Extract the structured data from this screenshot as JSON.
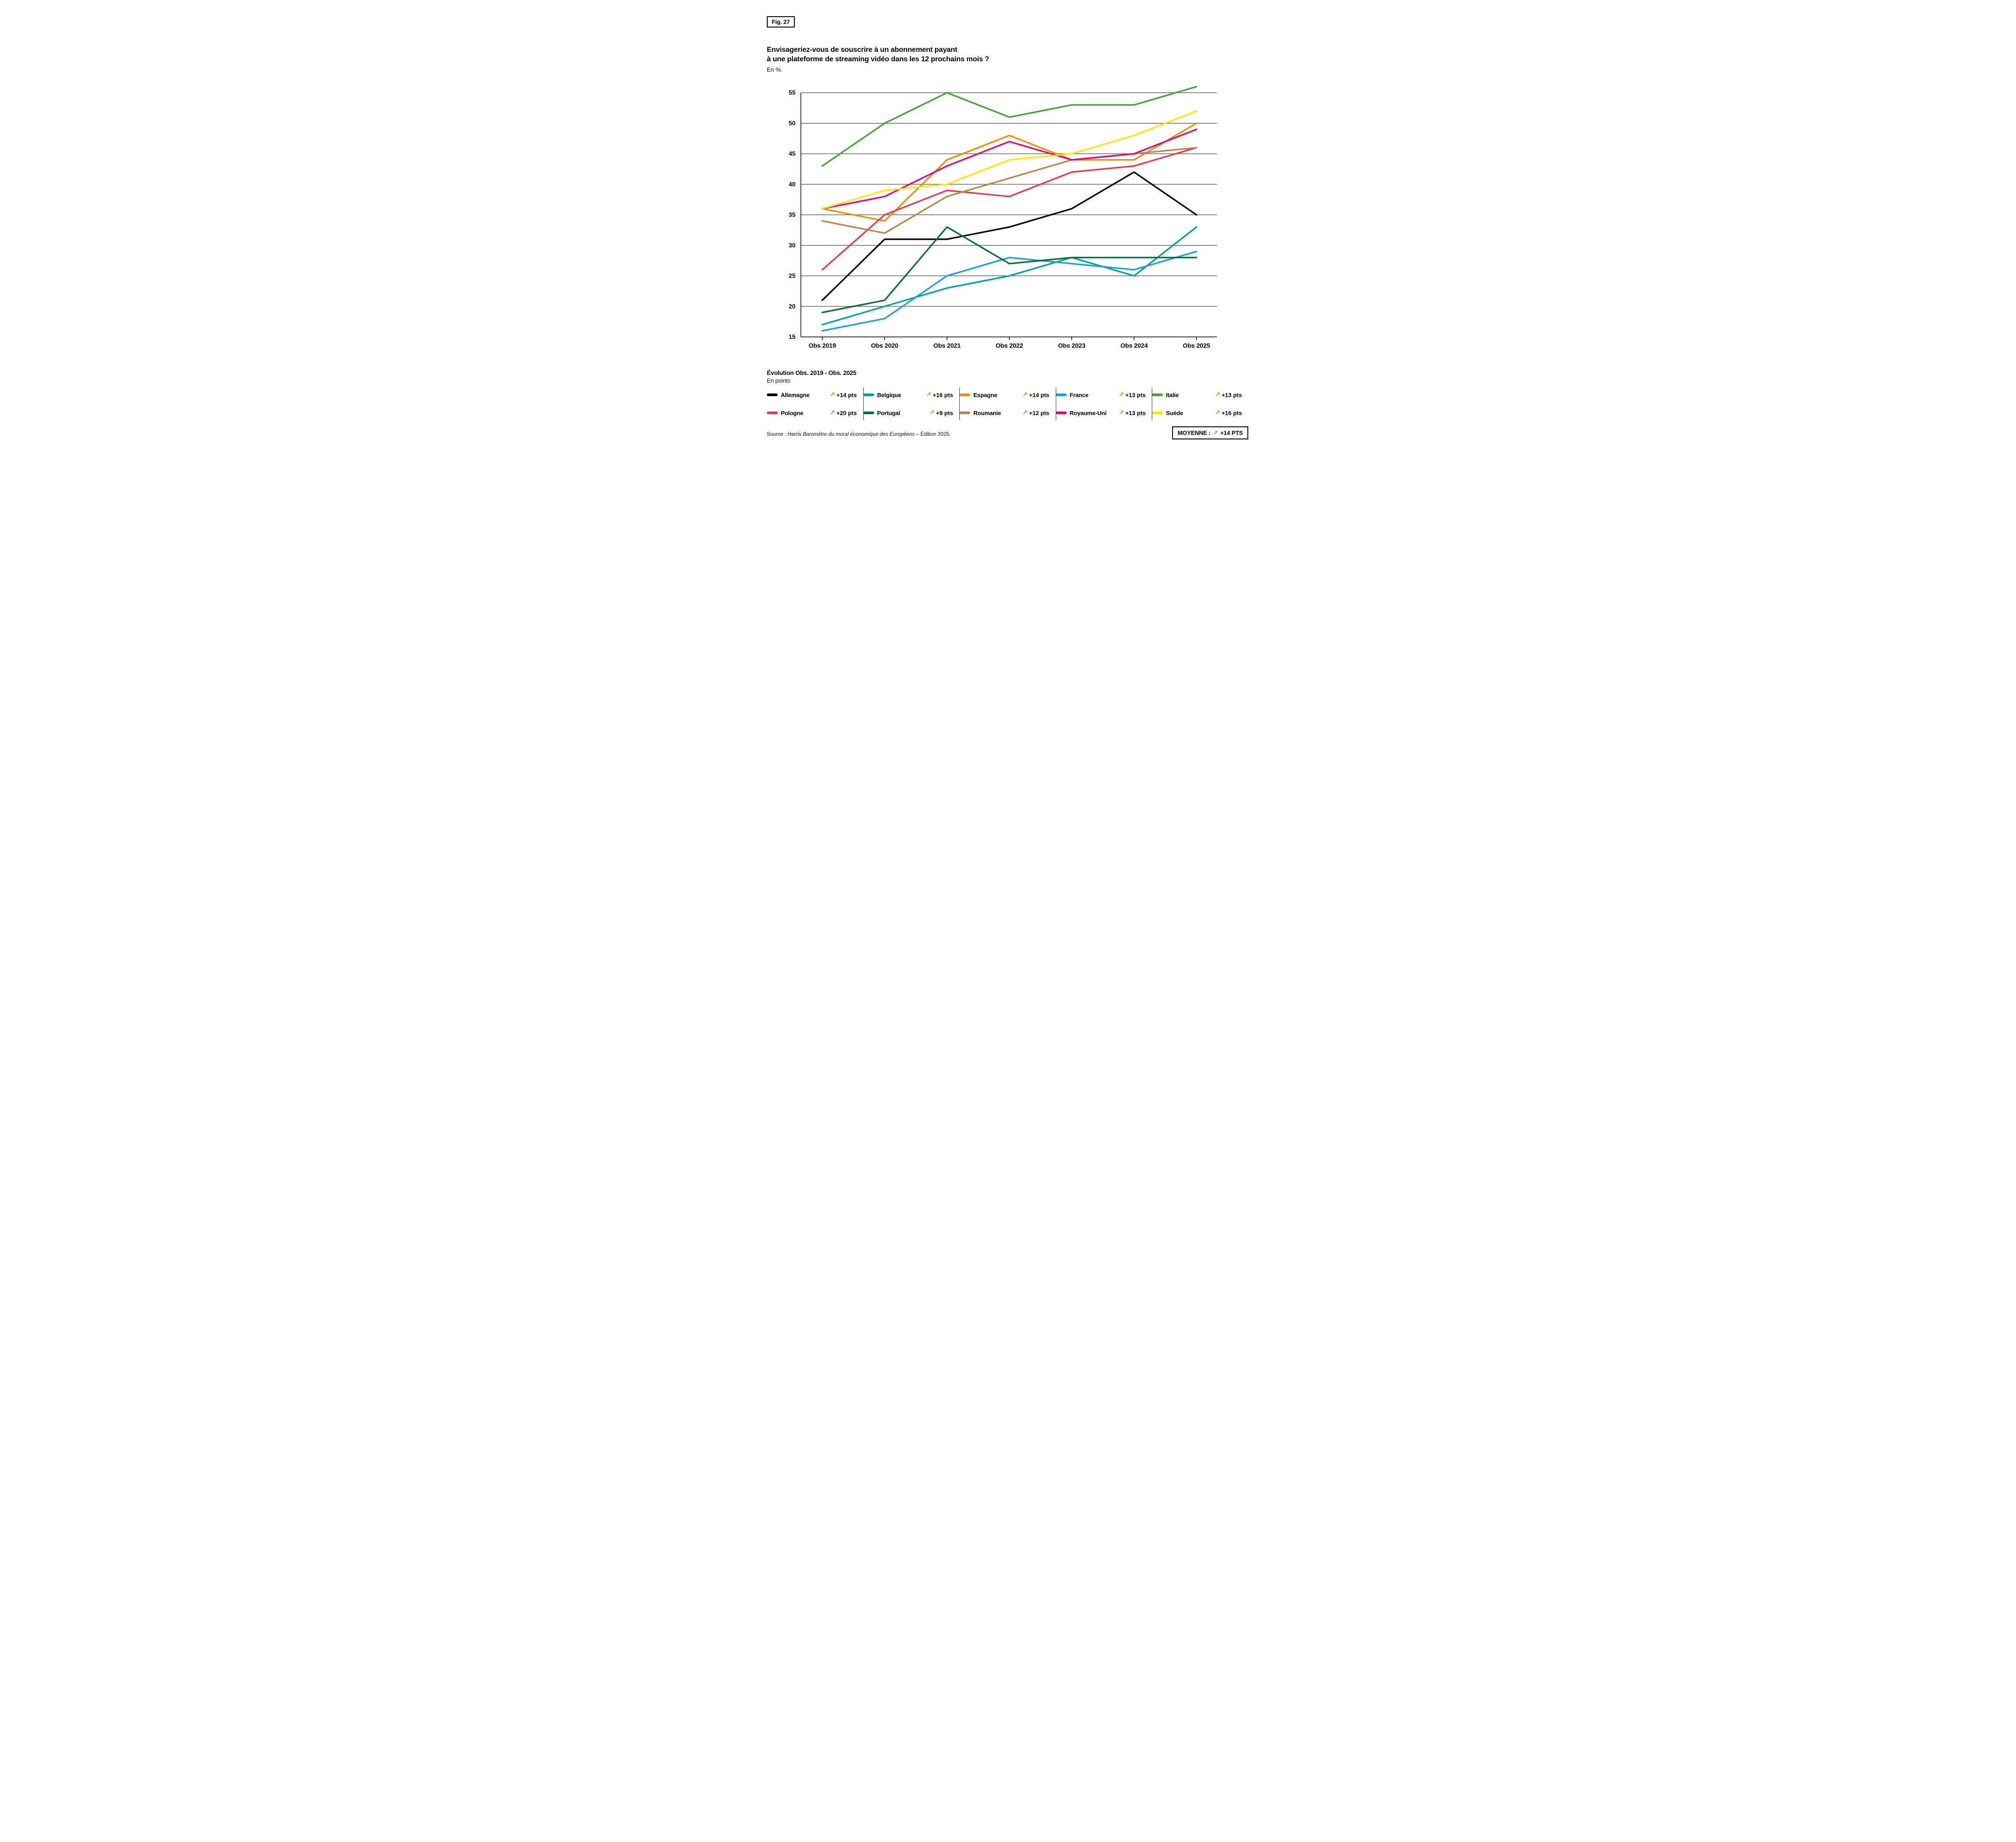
{
  "figure": {
    "badge": "Fig. 27",
    "title_line1": "Envisageriez-vous de souscrire à un abonnement payant",
    "title_line2": "à une plateforme de streaming vidéo dans les 12 prochains mois ?",
    "unit_note": "En %."
  },
  "chart_data": {
    "type": "line",
    "title": "Envisageriez-vous de souscrire à un abonnement payant à une plateforme de streaming vidéo dans les 12 prochains mois ?",
    "xlabel": "",
    "ylabel": "En %",
    "x_labels": [
      "Obs 2019",
      "Obs 2020",
      "Obs 2021",
      "Obs 2022",
      "Obs 2023",
      "Obs 2024",
      "Obs 2025"
    ],
    "y_ticks": [
      15,
      20,
      25,
      30,
      35,
      40,
      45,
      50,
      55
    ],
    "ylim": [
      15,
      55
    ],
    "grid": true,
    "legend_position": "bottom",
    "series": [
      {
        "name": "Allemagne",
        "color": "#000000",
        "values": [
          21,
          31,
          31,
          33,
          36,
          42,
          35
        ],
        "evolution": "+14 pts"
      },
      {
        "name": "Belgique",
        "color": "#00A48C",
        "values": [
          17,
          20,
          23,
          25,
          28,
          25,
          33
        ],
        "evolution": "+16 pts"
      },
      {
        "name": "Espagne",
        "color": "#F18E00",
        "values": [
          36,
          34,
          44,
          48,
          44,
          44,
          50
        ],
        "evolution": "+14 pts"
      },
      {
        "name": "France",
        "color": "#19A0DB",
        "values": [
          16,
          18,
          25,
          28,
          27,
          26,
          29
        ],
        "evolution": "+13 pts"
      },
      {
        "name": "Italie",
        "color": "#3EA635",
        "values": [
          43,
          50,
          55,
          51,
          53,
          53,
          56
        ],
        "evolution": "+13 pts"
      },
      {
        "name": "Pologne",
        "color": "#E63A4C",
        "values": [
          26,
          35,
          39,
          38,
          42,
          43,
          46
        ],
        "evolution": "+20 pts"
      },
      {
        "name": "Portugal",
        "color": "#0C6B3D",
        "values": [
          19,
          21,
          33,
          27,
          28,
          28,
          28
        ],
        "evolution": "+9 pts"
      },
      {
        "name": "Roumanie",
        "color": "#B8854E",
        "values": [
          34,
          32,
          38,
          41,
          44,
          45,
          46
        ],
        "evolution": "+12 pts"
      },
      {
        "name": "Royaume-Uni",
        "color": "#E4007D",
        "values": [
          36,
          38,
          43,
          47,
          44,
          45,
          49
        ],
        "evolution": "+13 pts"
      },
      {
        "name": "Suède",
        "color": "#FFE800",
        "values": [
          36,
          39,
          40,
          44,
          45,
          48,
          52
        ],
        "evolution": "+16 pts"
      }
    ]
  },
  "legend": {
    "heading": "Évolution Obs. 2019 - Obs. 2025",
    "subheading": "En points",
    "arrow_glyph": "↗",
    "arrow_color": "#76B72A"
  },
  "summary": {
    "label": "MOYENNE :",
    "value": "+14 PTS"
  },
  "source": {
    "prefix": "Source : Harris ",
    "italic": "Baromètre du moral économique des Européens",
    "suffix": " – Édition 2025."
  }
}
